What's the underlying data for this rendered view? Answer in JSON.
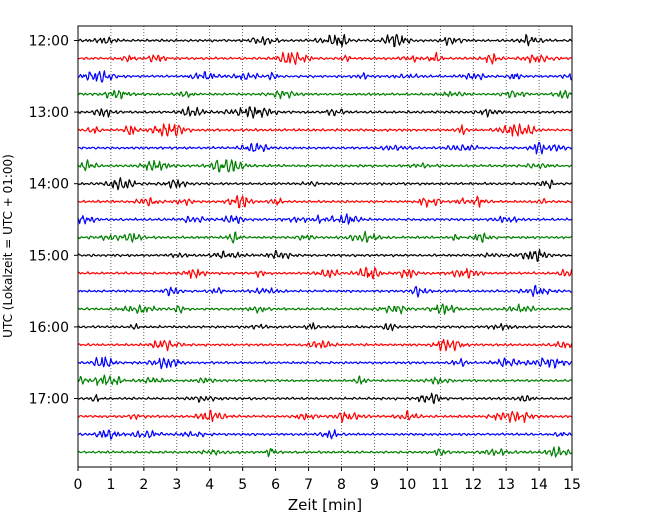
{
  "chart_data": {
    "type": "line",
    "title": "",
    "xlabel": "Zeit  [min]",
    "ylabel": "UTC (Lokalzeit = UTC + 01:00)",
    "xlim": [
      0,
      15
    ],
    "x_ticks": [
      "0",
      "1",
      "2",
      "3",
      "4",
      "5",
      "6",
      "7",
      "8",
      "9",
      "10",
      "11",
      "12",
      "13",
      "14",
      "15"
    ],
    "y_tick_labels": [
      "12:00",
      "13:00",
      "14:00",
      "15:00",
      "16:00",
      "17:00"
    ],
    "grid": "vertical dotted at each minute",
    "trace_interval_minutes": 15,
    "start_time": "12:00",
    "trace_count": 24,
    "color_cycle": [
      "#000000",
      "#ff0000",
      "#0000ff",
      "#008000"
    ],
    "traces": [
      {
        "start": "12:00",
        "color": "#000000"
      },
      {
        "start": "12:15",
        "color": "#ff0000"
      },
      {
        "start": "12:30",
        "color": "#0000ff"
      },
      {
        "start": "12:45",
        "color": "#008000"
      },
      {
        "start": "13:00",
        "color": "#000000"
      },
      {
        "start": "13:15",
        "color": "#ff0000"
      },
      {
        "start": "13:30",
        "color": "#0000ff"
      },
      {
        "start": "13:45",
        "color": "#008000"
      },
      {
        "start": "14:00",
        "color": "#000000"
      },
      {
        "start": "14:15",
        "color": "#ff0000"
      },
      {
        "start": "14:30",
        "color": "#0000ff"
      },
      {
        "start": "14:45",
        "color": "#008000"
      },
      {
        "start": "15:00",
        "color": "#000000"
      },
      {
        "start": "15:15",
        "color": "#ff0000"
      },
      {
        "start": "15:30",
        "color": "#0000ff"
      },
      {
        "start": "15:45",
        "color": "#008000"
      },
      {
        "start": "16:00",
        "color": "#000000"
      },
      {
        "start": "16:15",
        "color": "#ff0000"
      },
      {
        "start": "16:30",
        "color": "#0000ff"
      },
      {
        "start": "16:45",
        "color": "#008000"
      },
      {
        "start": "17:00",
        "color": "#000000"
      },
      {
        "start": "17:15",
        "color": "#ff0000"
      },
      {
        "start": "17:30",
        "color": "#0000ff"
      },
      {
        "start": "17:45",
        "color": "#008000"
      }
    ]
  }
}
